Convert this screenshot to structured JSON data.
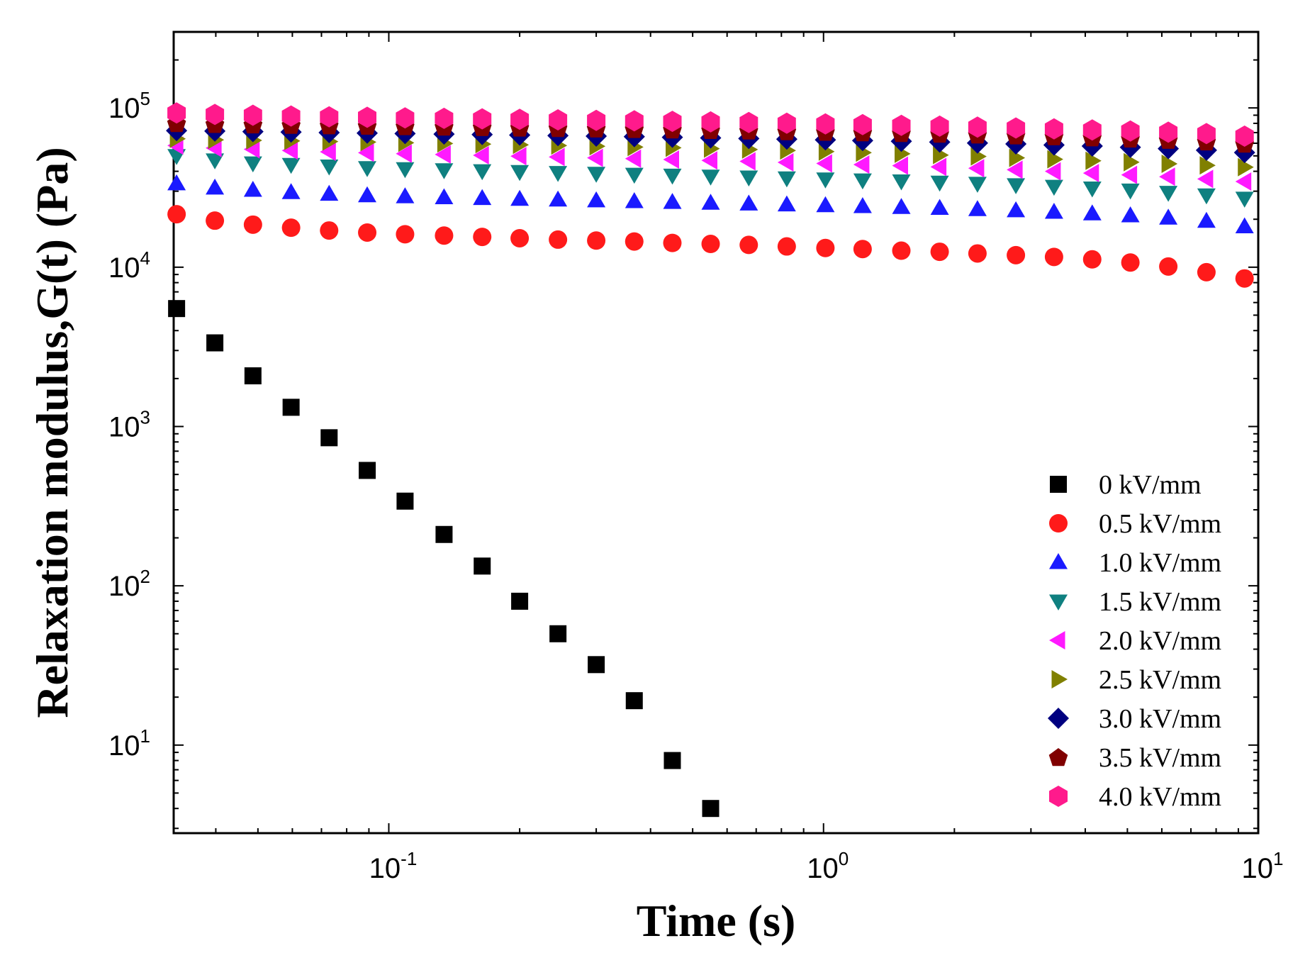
{
  "chart_data": {
    "type": "scatter",
    "title": "",
    "xlabel": "Time (s)",
    "ylabel": "Relaxation modulus,G(t) (Pa)",
    "x_scale": "log",
    "y_scale": "log",
    "xlim": [
      0.032,
      10
    ],
    "ylim": [
      2.8,
      300000
    ],
    "x_ticks": [
      {
        "value": 0.1,
        "mantissa": "10",
        "exponent": "-1"
      },
      {
        "value": 1,
        "mantissa": "10",
        "exponent": "0"
      },
      {
        "value": 10,
        "mantissa": "10",
        "exponent": "1"
      }
    ],
    "y_ticks": [
      {
        "value": 10,
        "mantissa": "10",
        "exponent": "1"
      },
      {
        "value": 100,
        "mantissa": "10",
        "exponent": "2"
      },
      {
        "value": 1000,
        "mantissa": "10",
        "exponent": "3"
      },
      {
        "value": 10000,
        "mantissa": "10",
        "exponent": "4"
      },
      {
        "value": 100000,
        "mantissa": "10",
        "exponent": "5"
      }
    ],
    "legend_position": "bottom-right",
    "grid": false,
    "x": [
      0.0325,
      0.0398,
      0.0487,
      0.0596,
      0.0729,
      0.0892,
      0.109,
      0.134,
      0.164,
      0.2,
      0.245,
      0.3,
      0.367,
      0.449,
      0.55,
      0.673,
      0.823,
      1.01,
      1.23,
      1.51,
      1.85,
      2.26,
      2.77,
      3.39,
      4.15,
      5.08,
      6.21,
      7.6,
      9.3
    ],
    "series": [
      {
        "name": "0 kV/mm",
        "marker": "square",
        "color": "#000000",
        "values": [
          5500,
          3350,
          2080,
          1320,
          850,
          530,
          340,
          210,
          133,
          80,
          50,
          32,
          19,
          8,
          4
        ]
      },
      {
        "name": "0.5 kV/mm",
        "marker": "circle",
        "color": "#ff1a1a",
        "values": [
          21500,
          19600,
          18500,
          17700,
          17000,
          16500,
          16100,
          15800,
          15500,
          15200,
          14900,
          14700,
          14500,
          14200,
          14000,
          13800,
          13500,
          13200,
          13000,
          12700,
          12500,
          12200,
          11900,
          11600,
          11200,
          10700,
          10100,
          9300,
          8500
        ]
      },
      {
        "name": "1.0 kV/mm",
        "marker": "triangle-up",
        "color": "#1a1aff",
        "values": [
          33500,
          31500,
          30500,
          29500,
          28800,
          28200,
          27800,
          27400,
          27100,
          26800,
          26500,
          26200,
          25900,
          25600,
          25300,
          25000,
          24700,
          24400,
          24100,
          23800,
          23500,
          23100,
          22700,
          22200,
          21700,
          21100,
          20400,
          19500,
          18000
        ]
      },
      {
        "name": "1.5 kV/mm",
        "marker": "triangle-down",
        "color": "#0f8080",
        "values": [
          50000,
          47000,
          45000,
          44000,
          43000,
          42000,
          41400,
          40800,
          40200,
          39700,
          39200,
          38700,
          38200,
          37700,
          37200,
          36700,
          36200,
          35700,
          35200,
          34700,
          34100,
          33500,
          32800,
          32100,
          31300,
          30400,
          29400,
          28300,
          27000
        ]
      },
      {
        "name": "2.0 kV/mm",
        "marker": "triangle-left",
        "color": "#ff1aff",
        "values": [
          58000,
          56000,
          55000,
          54000,
          53000,
          52300,
          51600,
          51000,
          50400,
          49800,
          49200,
          48600,
          48000,
          47400,
          46800,
          46200,
          45500,
          44800,
          44100,
          43400,
          42600,
          41800,
          40900,
          40000,
          39000,
          38000,
          37000,
          35800,
          34500
        ]
      },
      {
        "name": "2.5 kV/mm",
        "marker": "triangle-right",
        "color": "#808000",
        "values": [
          64000,
          63000,
          62500,
          62000,
          61500,
          61000,
          60400,
          59800,
          59200,
          58600,
          58000,
          57400,
          56800,
          56200,
          55500,
          54800,
          54000,
          53200,
          52400,
          51500,
          50600,
          49600,
          48600,
          47600,
          46600,
          45600,
          44600,
          43600,
          42500
        ]
      },
      {
        "name": "3.0 kV/mm",
        "marker": "diamond",
        "color": "#000080",
        "values": [
          72000,
          71500,
          71000,
          70500,
          70000,
          69500,
          69000,
          68500,
          68000,
          67500,
          67000,
          66500,
          66000,
          65400,
          64800,
          64200,
          63600,
          63000,
          62400,
          61700,
          61000,
          60200,
          59400,
          58500,
          57600,
          56600,
          55500,
          54200,
          52500
        ]
      },
      {
        "name": "3.5 kV/mm",
        "marker": "pentagon",
        "color": "#800000",
        "values": [
          80000,
          79000,
          78500,
          78000,
          77500,
          77000,
          76500,
          76000,
          75500,
          75000,
          74500,
          74000,
          73500,
          73000,
          72400,
          71800,
          71200,
          70600,
          70000,
          69300,
          68600,
          67800,
          67000,
          66100,
          65100,
          64000,
          62800,
          61400,
          59500
        ]
      },
      {
        "name": "4.0 kV/mm",
        "marker": "hexagon",
        "color": "#ff1a8c",
        "values": [
          93000,
          91000,
          90000,
          89000,
          88000,
          87300,
          86600,
          86000,
          85400,
          84800,
          84200,
          83600,
          83000,
          82400,
          81700,
          81000,
          80200,
          79400,
          78600,
          77700,
          76800,
          75800,
          74800,
          73800,
          72700,
          71600,
          70400,
          69000,
          66500
        ]
      }
    ]
  }
}
